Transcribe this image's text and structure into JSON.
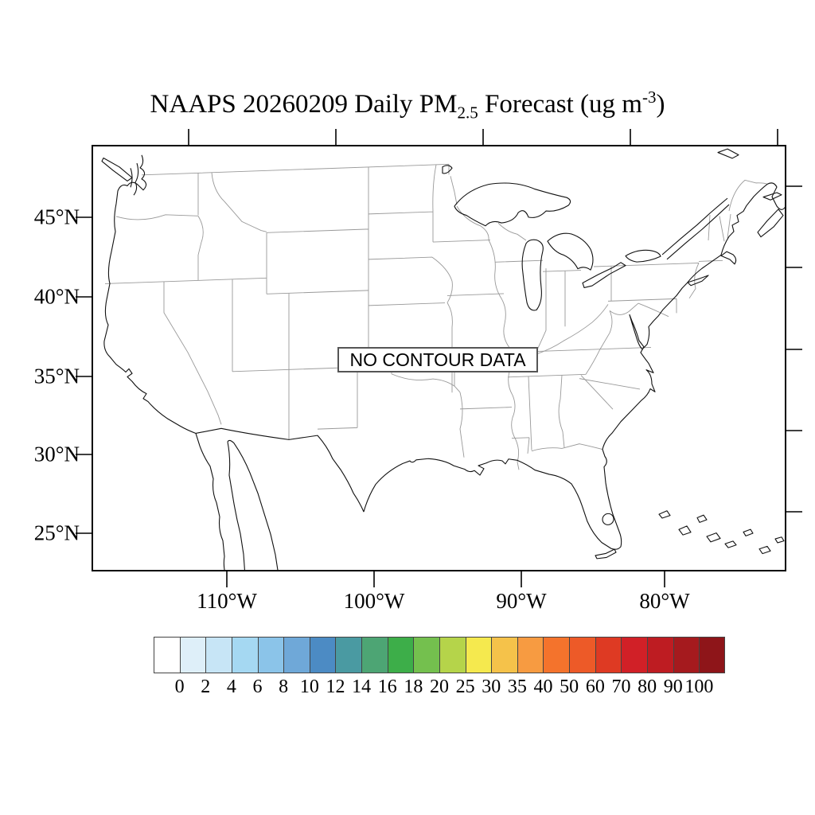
{
  "title": {
    "text_main": "NAAPS 20260209 Daily PM",
    "subscript": "2.5",
    "text_mid": " Forecast (ug m",
    "superscript": "-3",
    "text_end": ")"
  },
  "plot": {
    "no_data_label": "NO CONTOUR DATA",
    "frame_color": "#000000",
    "coast_color": "#111111",
    "state_border_color": "#999999"
  },
  "axes": {
    "lat_labels": [
      "45°N",
      "40°N",
      "35°N",
      "30°N",
      "25°N"
    ],
    "lon_labels": [
      "110°W",
      "100°W",
      "90°W",
      "80°W"
    ]
  },
  "colorbar": {
    "tick_labels": [
      "0",
      "2",
      "4",
      "6",
      "8",
      "10",
      "12",
      "14",
      "16",
      "18",
      "20",
      "25",
      "30",
      "35",
      "40",
      "50",
      "60",
      "70",
      "80",
      "90",
      "100"
    ],
    "cell_colors": [
      "#FFFFFF",
      "#DEEFF9",
      "#C7E5F6",
      "#A5D8F2",
      "#8BC4E9",
      "#6FA8D8",
      "#4C8BC4",
      "#4A9AA2",
      "#4DA574",
      "#3DAE49",
      "#74C04E",
      "#B5D44A",
      "#F5E94E",
      "#F5C24A",
      "#F79B41",
      "#F4732C",
      "#ED5A28",
      "#DE3A23",
      "#D12027",
      "#BE1C22",
      "#A51A1E",
      "#8E1519"
    ]
  }
}
